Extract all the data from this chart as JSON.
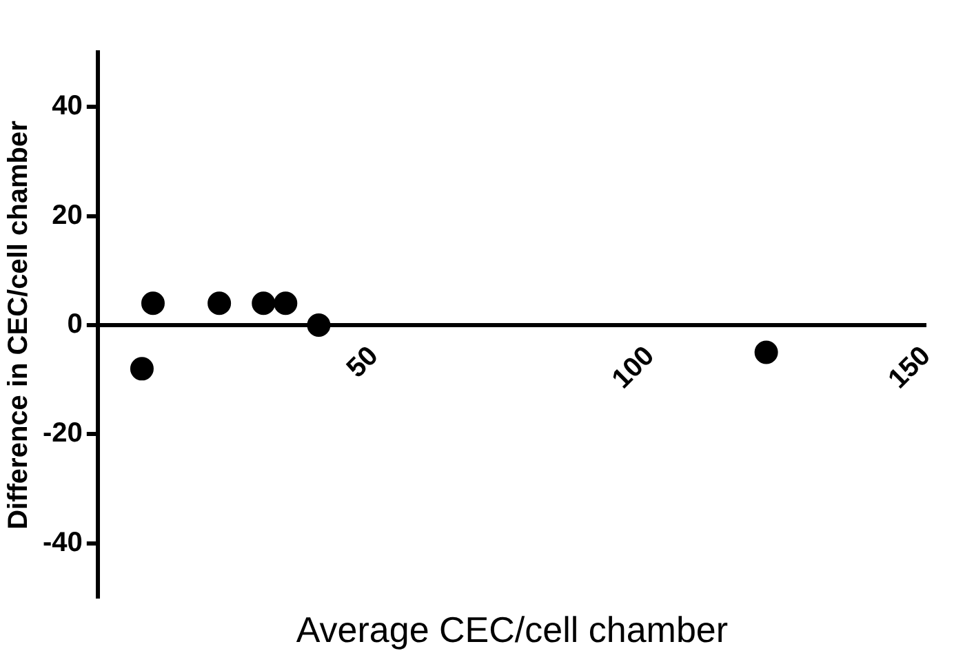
{
  "chart_data": {
    "type": "scatter",
    "xlabel": "Average CEC/cell chamber",
    "ylabel": "Difference in CEC/cell chamber",
    "x": [
      8,
      10,
      22,
      30,
      34,
      40,
      121
    ],
    "values": [
      -8,
      4,
      4,
      4,
      4,
      0,
      -5
    ],
    "color": "#000000",
    "marker": "circle",
    "xlim": [
      0,
      150
    ],
    "xticks": [
      50,
      100,
      150
    ],
    "ylim": [
      -50,
      50
    ],
    "yticks": [
      -40,
      -20,
      0,
      20,
      40
    ],
    "grid": false,
    "legend": false
  }
}
